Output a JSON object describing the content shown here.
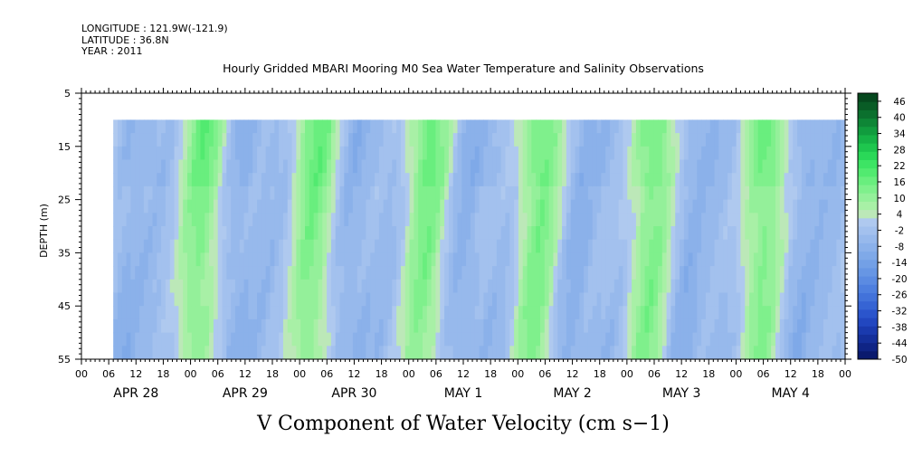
{
  "header": {
    "longitude": "LONGITUDE : 121.9W(-121.9)",
    "latitude": "LATITUDE : 36.8N",
    "year": "YEAR : 2011"
  },
  "chart_data": {
    "type": "heatmap",
    "title": "Hourly Gridded MBARI Mooring M0 Sea Water Temperature and Salinity Observations",
    "xlabel": "V Component of Water Velocity (cm s−1)",
    "ylabel": "DEPTH (m)",
    "y_ticks": [
      5,
      15,
      25,
      35,
      45,
      55
    ],
    "ylim": [
      5,
      55
    ],
    "y_reversed": true,
    "data_depth_range": [
      10,
      55
    ],
    "x_hour_ticks": [
      "00",
      "06",
      "12",
      "18",
      "00",
      "06",
      "12",
      "18",
      "00",
      "06",
      "12",
      "18",
      "00",
      "06",
      "12",
      "18",
      "00",
      "06",
      "12",
      "18",
      "00",
      "06",
      "12",
      "18",
      "00",
      "06",
      "12",
      "18",
      "00"
    ],
    "x_day_labels": [
      "APR 28",
      "APR 29",
      "APR 30",
      "MAY  1",
      "MAY  2",
      "MAY  3",
      "MAY  4"
    ],
    "data_start_hour": 7,
    "colorbar": {
      "ticks": [
        "46",
        "40",
        "34",
        "28",
        "22",
        "16",
        "10",
        "4",
        "-2",
        "-8",
        "-14",
        "-20",
        "-26",
        "-32",
        "-38",
        "-44",
        "-50"
      ],
      "levels": [
        -50,
        -47,
        -44,
        -41,
        -38,
        -35,
        -32,
        -29,
        -26,
        -23,
        -20,
        -17,
        -14,
        -11,
        -8,
        -5,
        -2,
        1,
        4,
        7,
        10,
        13,
        16,
        19,
        22,
        25,
        28,
        31,
        34,
        37,
        40,
        43,
        46,
        49
      ],
      "colors": [
        "#0a1a6e",
        "#0f2485",
        "#142f9a",
        "#1a3aae",
        "#2247c0",
        "#2b55cc",
        "#3664d4",
        "#4272da",
        "#4e7fdf",
        "#5b8be2",
        "#6796e4",
        "#73a0e6",
        "#7fa9e8",
        "#8bb1ea",
        "#97b9ec",
        "#a3c1ee",
        "#afc9ef",
        "#bce8b8",
        "#a8f0a6",
        "#94f09a",
        "#7ff08c",
        "#69ee7e",
        "#52ea70",
        "#3de464",
        "#2ad858",
        "#1ec64e",
        "#16b246",
        "#119c3e",
        "#0e8636",
        "#0b702e",
        "#095c26",
        "#06481e"
      ]
    }
  }
}
